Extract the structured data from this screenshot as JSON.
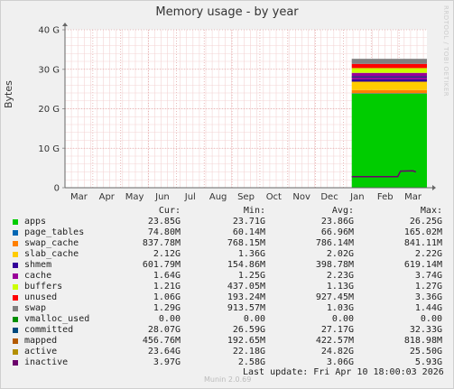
{
  "title": "Memory usage - by year",
  "watermark": "RRDTOOL / TOBI OETIKER",
  "footer": {
    "last_update": "Last update: Fri Apr 10 18:00:03 2026",
    "munin": "Munin 2.0.69"
  },
  "legend": {
    "headers": [
      "Cur:",
      "Min:",
      "Avg:",
      "Max:"
    ],
    "rows": [
      {
        "name": "apps",
        "color": "#00cc00",
        "cur": "23.85G",
        "min": "23.71G",
        "avg": "23.86G",
        "max": "26.25G"
      },
      {
        "name": "page_tables",
        "color": "#0066b3",
        "cur": "74.80M",
        "min": "60.14M",
        "avg": "66.96M",
        "max": "165.02M"
      },
      {
        "name": "swap_cache",
        "color": "#ff8000",
        "cur": "837.78M",
        "min": "768.15M",
        "avg": "786.14M",
        "max": "841.11M"
      },
      {
        "name": "slab_cache",
        "color": "#ffcc00",
        "cur": "2.12G",
        "min": "1.36G",
        "avg": "2.02G",
        "max": "2.22G"
      },
      {
        "name": "shmem",
        "color": "#330099",
        "cur": "601.79M",
        "min": "154.86M",
        "avg": "398.78M",
        "max": "619.14M"
      },
      {
        "name": "cache",
        "color": "#990099",
        "cur": "1.64G",
        "min": "1.25G",
        "avg": "2.23G",
        "max": "3.74G"
      },
      {
        "name": "buffers",
        "color": "#ccff00",
        "cur": "1.21G",
        "min": "437.05M",
        "avg": "1.13G",
        "max": "1.27G"
      },
      {
        "name": "unused",
        "color": "#ff0000",
        "cur": "1.06G",
        "min": "193.24M",
        "avg": "927.45M",
        "max": "3.36G"
      },
      {
        "name": "swap",
        "color": "#808080",
        "cur": "1.29G",
        "min": "913.57M",
        "avg": "1.03G",
        "max": "1.44G"
      },
      {
        "name": "vmalloc_used",
        "color": "#008f00",
        "cur": "0.00",
        "min": "0.00",
        "avg": "0.00",
        "max": "0.00"
      },
      {
        "name": "committed",
        "color": "#00487d",
        "cur": "28.07G",
        "min": "26.59G",
        "avg": "27.17G",
        "max": "32.33G"
      },
      {
        "name": "mapped",
        "color": "#b35a00",
        "cur": "456.76M",
        "min": "192.65M",
        "avg": "422.57M",
        "max": "818.98M"
      },
      {
        "name": "active",
        "color": "#b38f00",
        "cur": "23.64G",
        "min": "22.18G",
        "avg": "24.82G",
        "max": "25.50G"
      },
      {
        "name": "inactive",
        "color": "#6b006b",
        "cur": "3.97G",
        "min": "2.58G",
        "avg": "3.06G",
        "max": "5.93G"
      }
    ]
  },
  "chart_data": {
    "type": "area",
    "title": "Memory usage - by year",
    "ylabel": "Bytes",
    "ylim": [
      0,
      40
    ],
    "yticks": [
      0,
      10,
      20,
      30,
      40
    ],
    "ytick_labels": [
      "0",
      "10 G",
      "20 G",
      "30 G",
      "40 G"
    ],
    "x_ticks": [
      "Mar",
      "Apr",
      "May",
      "Jun",
      "Jul",
      "Aug",
      "Sep",
      "Oct",
      "Nov",
      "Dec",
      "Jan",
      "Feb",
      "Mar"
    ],
    "grid": true,
    "data_start_month_index": 10.3,
    "stack_gb": [
      {
        "name": "apps",
        "color": "#00cc00",
        "value": 23.85
      },
      {
        "name": "page_tables",
        "color": "#0066b3",
        "value": 0.07
      },
      {
        "name": "swap_cache",
        "color": "#ff8000",
        "value": 0.82
      },
      {
        "name": "slab_cache",
        "color": "#ffcc00",
        "value": 2.12
      },
      {
        "name": "shmem",
        "color": "#330099",
        "value": 0.59
      },
      {
        "name": "cache",
        "color": "#990099",
        "value": 1.64
      },
      {
        "name": "buffers",
        "color": "#ccff00",
        "value": 1.21
      },
      {
        "name": "unused",
        "color": "#ff0000",
        "value": 1.06
      },
      {
        "name": "swap",
        "color": "#808080",
        "value": 1.29
      }
    ],
    "lines": [
      {
        "name": "committed",
        "color": "#00487d",
        "value": 28.07
      },
      {
        "name": "inactive",
        "color": "#6b006b",
        "points": [
          [
            10.3,
            2.8
          ],
          [
            11.95,
            2.8
          ],
          [
            12.05,
            4.2
          ],
          [
            12.5,
            4.3
          ],
          [
            12.6,
            4.0
          ]
        ]
      }
    ]
  }
}
